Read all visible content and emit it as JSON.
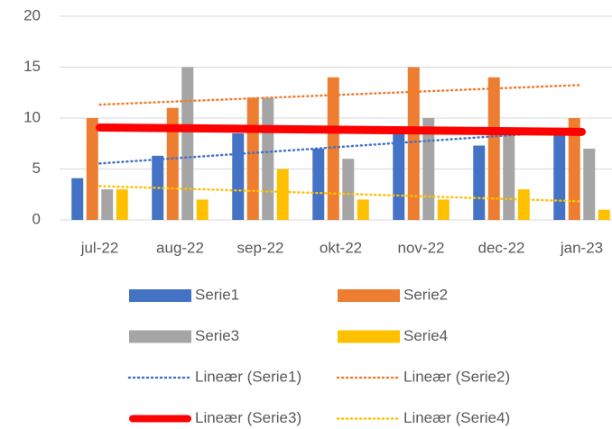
{
  "chart_data": {
    "type": "bar",
    "categories": [
      "jul-22",
      "aug-22",
      "sep-22",
      "okt-22",
      "nov-22",
      "dec-22",
      "jan-23"
    ],
    "series": [
      {
        "name": "Serie1",
        "color": "#4472c4",
        "values": [
          4.1,
          6.3,
          8.5,
          7,
          8.5,
          7.3,
          8.5
        ]
      },
      {
        "name": "Serie2",
        "color": "#ed7d31",
        "values": [
          10,
          11,
          12,
          14,
          15,
          14,
          10
        ]
      },
      {
        "name": "Serie3",
        "color": "#a5a5a5",
        "values": [
          3,
          15,
          12,
          6,
          10,
          9,
          7
        ]
      },
      {
        "name": "Serie4",
        "color": "#ffc000",
        "values": [
          3,
          2,
          5,
          2,
          2,
          3,
          1
        ]
      }
    ],
    "trendlines": [
      {
        "name": "Lineær (Serie1)",
        "color": "#4472c4",
        "style": "dotted"
      },
      {
        "name": "Lineær (Serie2)",
        "color": "#ed7d31",
        "style": "dotted"
      },
      {
        "name": "Lineær (Serie3)",
        "color": "#ff0000",
        "style": "solid"
      },
      {
        "name": "Lineær (Serie4)",
        "color": "#ffc000",
        "style": "dotted"
      }
    ],
    "ylim": [
      0,
      20
    ],
    "yticks": [
      0,
      5,
      10,
      15,
      20
    ],
    "grid": true,
    "legend": "bottom"
  }
}
